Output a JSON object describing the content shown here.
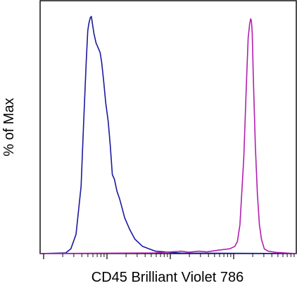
{
  "chart_data": {
    "type": "line",
    "title": "",
    "xlabel": "CD45 Brilliant Violet 786",
    "ylabel": "% of Max",
    "x_scale": "log",
    "xlim": [
      0,
      100
    ],
    "ylim": [
      0,
      100
    ],
    "grid": false,
    "legend": "none",
    "series": [
      {
        "color": "#1a1a9e",
        "x": [
          0,
          10,
          12,
          14,
          16,
          17,
          18,
          18.6,
          19,
          19.6,
          20,
          20.4,
          21,
          21.8,
          22.6,
          23.4,
          24,
          24.8,
          25.6,
          26.6,
          27.4,
          28.2,
          29,
          30,
          31,
          32,
          33,
          35,
          37,
          40,
          45,
          55,
          100
        ],
        "y": [
          0,
          0.3,
          2,
          8,
          28,
          55,
          80,
          93,
          96,
          98.5,
          99,
          96,
          92,
          88,
          86,
          84,
          80,
          72,
          63,
          55,
          45,
          33,
          31,
          26,
          23,
          19,
          15,
          10,
          6,
          3,
          1,
          0.2,
          0
        ]
      },
      {
        "color": "#b01fb0",
        "x": [
          0,
          45,
          55,
          58,
          62,
          65,
          70,
          74,
          76,
          77,
          78,
          79.5,
          80.5,
          81.2,
          81.8,
          82.2,
          82.5,
          82.8,
          83.2,
          84,
          84.8,
          85.6,
          86.4,
          87.5,
          89,
          92,
          100
        ],
        "y": [
          0,
          0.3,
          1,
          0.6,
          1,
          0.7,
          1.5,
          2,
          3,
          5,
          12,
          40,
          70,
          90,
          96,
          98,
          97,
          92,
          75,
          45,
          25,
          12,
          6,
          2,
          1,
          0.5,
          0
        ]
      }
    ]
  }
}
